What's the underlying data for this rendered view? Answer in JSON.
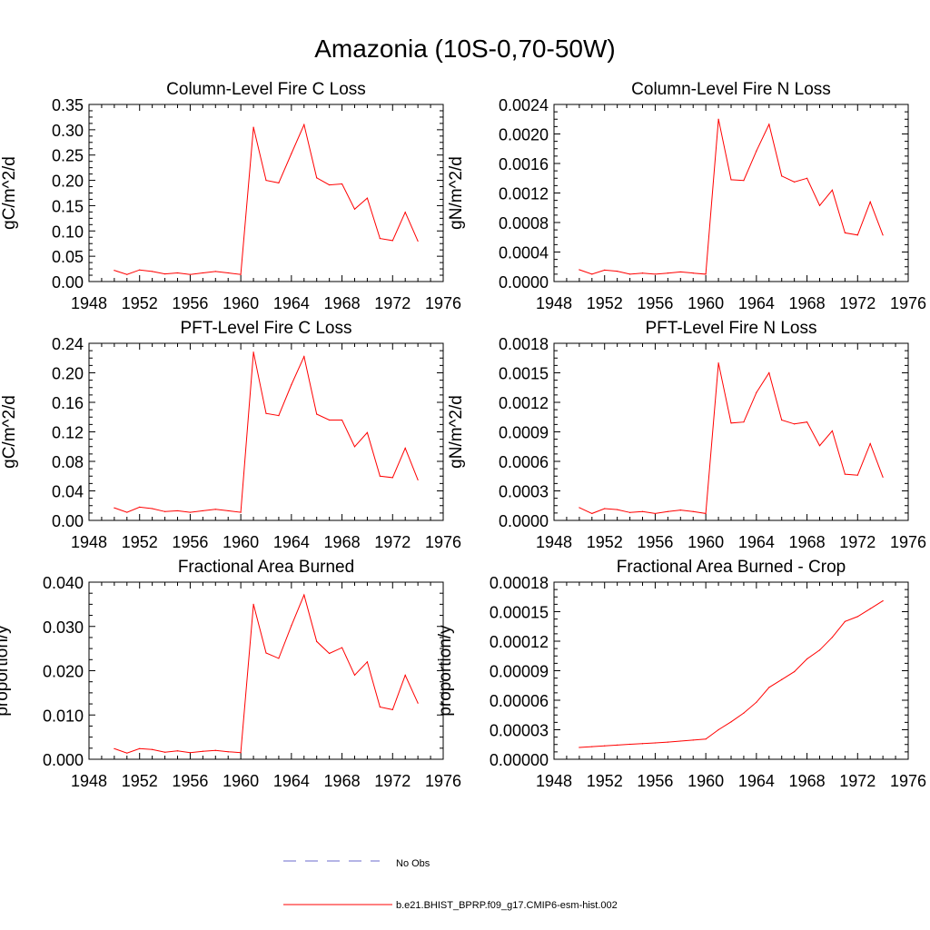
{
  "page_title": "Amazonia (10S-0,70-50W)",
  "colors": {
    "model": "#ff0000",
    "obs": "#6a6acd",
    "axis": "#000000"
  },
  "legend": {
    "items": [
      {
        "label": "No Obs",
        "style": "dashed",
        "color": "#6a6acd"
      },
      {
        "label": "b.e21.BHIST_BPRP.f09_g17.CMIP6-esm-hist.002",
        "style": "solid",
        "color": "#ff0000"
      }
    ]
  },
  "chart_data": [
    {
      "type": "line",
      "title": "Column-Level Fire C Loss",
      "ylabel": "gC/m^2/d",
      "xlim": [
        1948,
        1976
      ],
      "ylim": [
        0,
        0.35
      ],
      "xticks": [
        "1948",
        "1952",
        "1956",
        "1960",
        "1964",
        "1968",
        "1972",
        "1976"
      ],
      "yticks": [
        "0.00",
        "0.05",
        "0.10",
        "0.15",
        "0.20",
        "0.25",
        "0.30",
        "0.35"
      ],
      "x": [
        1950,
        1951,
        1952,
        1953,
        1954,
        1955,
        1956,
        1957,
        1958,
        1959,
        1960,
        1961,
        1962,
        1963,
        1964,
        1965,
        1966,
        1967,
        1968,
        1969,
        1970,
        1971,
        1972,
        1973,
        1974
      ],
      "series": [
        {
          "name": "b.e21.BHIST_BPRP.f09_g17.CMIP6-esm-hist.002",
          "values": [
            0.022,
            0.014,
            0.023,
            0.02,
            0.015,
            0.017,
            0.014,
            0.017,
            0.02,
            0.017,
            0.014,
            0.305,
            0.2,
            0.195,
            0.253,
            0.31,
            0.205,
            0.191,
            0.193,
            0.143,
            0.165,
            0.085,
            0.081,
            0.137,
            0.08
          ]
        }
      ]
    },
    {
      "type": "line",
      "title": "Column-Level Fire N Loss",
      "ylabel": "gN/m^2/d",
      "xlim": [
        1948,
        1976
      ],
      "ylim": [
        0,
        0.0024
      ],
      "xticks": [
        "1948",
        "1952",
        "1956",
        "1960",
        "1964",
        "1968",
        "1972",
        "1976"
      ],
      "yticks": [
        "0.0000",
        "0.0004",
        "0.0008",
        "0.0012",
        "0.0016",
        "0.0020",
        "0.0024"
      ],
      "x": [
        1950,
        1951,
        1952,
        1953,
        1954,
        1955,
        1956,
        1957,
        1958,
        1959,
        1960,
        1961,
        1962,
        1963,
        1964,
        1965,
        1966,
        1967,
        1968,
        1969,
        1970,
        1971,
        1972,
        1973,
        1974
      ],
      "series": [
        {
          "name": "b.e21.BHIST_BPRP.f09_g17.CMIP6-esm-hist.002",
          "values": [
            0.00016,
            0.0001,
            0.000155,
            0.00014,
            0.0001,
            0.000115,
            0.0001,
            0.000115,
            0.00013,
            0.000115,
            0.0001,
            0.0022,
            0.00138,
            0.00137,
            0.00177,
            0.00213,
            0.00143,
            0.00135,
            0.0014,
            0.00103,
            0.00124,
            0.00066,
            0.00063,
            0.00108,
            0.00063
          ]
        }
      ]
    },
    {
      "type": "line",
      "title": "PFT-Level Fire C Loss",
      "ylabel": "gC/m^2/d",
      "xlim": [
        1948,
        1976
      ],
      "ylim": [
        0,
        0.24
      ],
      "xticks": [
        "1948",
        "1952",
        "1956",
        "1960",
        "1964",
        "1968",
        "1972",
        "1976"
      ],
      "yticks": [
        "0.00",
        "0.04",
        "0.08",
        "0.12",
        "0.16",
        "0.20",
        "0.24"
      ],
      "x": [
        1950,
        1951,
        1952,
        1953,
        1954,
        1955,
        1956,
        1957,
        1958,
        1959,
        1960,
        1961,
        1962,
        1963,
        1964,
        1965,
        1966,
        1967,
        1968,
        1969,
        1970,
        1971,
        1972,
        1973,
        1974
      ],
      "series": [
        {
          "name": "b.e21.BHIST_BPRP.f09_g17.CMIP6-esm-hist.002",
          "values": [
            0.017,
            0.011,
            0.018,
            0.016,
            0.012,
            0.013,
            0.011,
            0.013,
            0.015,
            0.013,
            0.011,
            0.228,
            0.145,
            0.142,
            0.184,
            0.222,
            0.144,
            0.136,
            0.136,
            0.1,
            0.119,
            0.06,
            0.058,
            0.098,
            0.055
          ]
        }
      ]
    },
    {
      "type": "line",
      "title": "PFT-Level Fire N Loss",
      "ylabel": "gN/m^2/d",
      "xlim": [
        1948,
        1976
      ],
      "ylim": [
        0,
        0.0018
      ],
      "xticks": [
        "1948",
        "1952",
        "1956",
        "1960",
        "1964",
        "1968",
        "1972",
        "1976"
      ],
      "yticks": [
        "0.0000",
        "0.0003",
        "0.0006",
        "0.0009",
        "0.0012",
        "0.0015",
        "0.0018"
      ],
      "x": [
        1950,
        1951,
        1952,
        1953,
        1954,
        1955,
        1956,
        1957,
        1958,
        1959,
        1960,
        1961,
        1962,
        1963,
        1964,
        1965,
        1966,
        1967,
        1968,
        1969,
        1970,
        1971,
        1972,
        1973,
        1974
      ],
      "series": [
        {
          "name": "b.e21.BHIST_BPRP.f09_g17.CMIP6-esm-hist.002",
          "values": [
            0.00013,
            7e-05,
            0.00012,
            0.00011,
            8e-05,
            9e-05,
            7e-05,
            9e-05,
            0.000105,
            9e-05,
            7e-05,
            0.0016,
            0.00099,
            0.001,
            0.0013,
            0.0015,
            0.00102,
            0.00098,
            0.001,
            0.00076,
            0.00091,
            0.00047,
            0.00046,
            0.00078,
            0.00044
          ]
        }
      ]
    },
    {
      "type": "line",
      "title": "Fractional Area Burned",
      "ylabel": "proportion/y",
      "xlim": [
        1948,
        1976
      ],
      "ylim": [
        0,
        0.04
      ],
      "xticks": [
        "1948",
        "1952",
        "1956",
        "1960",
        "1964",
        "1968",
        "1972",
        "1976"
      ],
      "yticks": [
        "0.000",
        "0.010",
        "0.020",
        "0.030",
        "0.040"
      ],
      "x": [
        1950,
        1951,
        1952,
        1953,
        1954,
        1955,
        1956,
        1957,
        1958,
        1959,
        1960,
        1961,
        1962,
        1963,
        1964,
        1965,
        1966,
        1967,
        1968,
        1969,
        1970,
        1971,
        1972,
        1973,
        1974
      ],
      "series": [
        {
          "name": "b.e21.BHIST_BPRP.f09_g17.CMIP6-esm-hist.002",
          "values": [
            0.0024,
            0.0014,
            0.0024,
            0.0022,
            0.0016,
            0.0019,
            0.0015,
            0.0018,
            0.002,
            0.0017,
            0.0015,
            0.035,
            0.024,
            0.0228,
            0.0302,
            0.0371,
            0.0266,
            0.0239,
            0.0252,
            0.019,
            0.022,
            0.0118,
            0.0112,
            0.019,
            0.0127
          ]
        }
      ]
    },
    {
      "type": "line",
      "title": "Fractional Area Burned - Crop",
      "ylabel": "proportion/y",
      "xlim": [
        1948,
        1976
      ],
      "ylim": [
        0,
        0.00018
      ],
      "xticks": [
        "1948",
        "1952",
        "1956",
        "1960",
        "1964",
        "1968",
        "1972",
        "1976"
      ],
      "yticks": [
        "0.00000",
        "0.00003",
        "0.00006",
        "0.00009",
        "0.00012",
        "0.00015",
        "0.00018"
      ],
      "x": [
        1950,
        1951,
        1952,
        1953,
        1954,
        1955,
        1956,
        1957,
        1958,
        1959,
        1960,
        1961,
        1962,
        1963,
        1964,
        1965,
        1966,
        1967,
        1968,
        1969,
        1970,
        1971,
        1972,
        1973,
        1974
      ],
      "series": [
        {
          "name": "b.e21.BHIST_BPRP.f09_g17.CMIP6-esm-hist.002",
          "values": [
            1.2e-05,
            1.28e-05,
            1.36e-05,
            1.44e-05,
            1.52e-05,
            1.59e-05,
            1.66e-05,
            1.74e-05,
            1.85e-05,
            1.95e-05,
            2.05e-05,
            3e-05,
            3.8e-05,
            4.7e-05,
            5.8e-05,
            7.3e-05,
            8.1e-05,
            8.9e-05,
            0.000102,
            0.000111,
            0.000124,
            0.00014,
            0.000145,
            0.000153,
            0.000161
          ]
        }
      ]
    }
  ]
}
